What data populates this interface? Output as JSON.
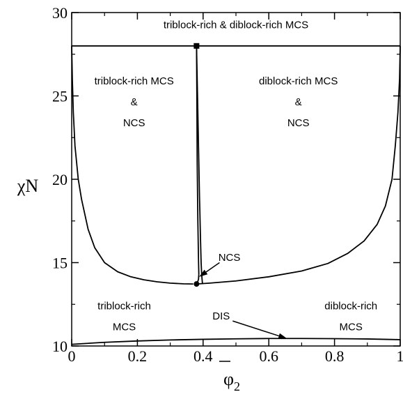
{
  "chart_data": {
    "type": "line",
    "xlim": [
      0,
      1
    ],
    "ylim": [
      10,
      30
    ],
    "xlabel_main": "φ",
    "xlabel_sub": "2",
    "ylabel": "χN",
    "x_ticks": [
      "0",
      "0.2",
      "0.4",
      "0.6",
      "0.8",
      "1"
    ],
    "y_ticks": [
      "10",
      "15",
      "20",
      "25",
      "30"
    ],
    "grid": false,
    "series": [
      {
        "role": "binodal-left",
        "x": [
          0.0,
          0.002,
          0.005,
          0.01,
          0.02,
          0.03,
          0.05,
          0.07,
          0.1,
          0.14,
          0.18,
          0.22,
          0.26,
          0.3,
          0.34,
          0.37
        ],
        "y": [
          28.0,
          26.0,
          24.0,
          22.0,
          20.0,
          18.8,
          17.0,
          15.9,
          15.0,
          14.45,
          14.15,
          13.97,
          13.85,
          13.77,
          13.73,
          13.72
        ]
      },
      {
        "role": "binodal-right",
        "x": [
          0.38,
          0.42,
          0.5,
          0.6,
          0.7,
          0.78,
          0.84,
          0.89,
          0.93,
          0.955,
          0.975,
          0.985,
          0.993,
          0.998,
          1.0
        ],
        "y": [
          13.72,
          13.77,
          13.9,
          14.15,
          14.5,
          14.95,
          15.55,
          16.3,
          17.3,
          18.4,
          20.0,
          22.0,
          24.0,
          26.0,
          28.0
        ]
      },
      {
        "role": "NCS-upper-left",
        "x": [
          0.38,
          0.381,
          0.382,
          0.384,
          0.386,
          0.387
        ],
        "y": [
          28.0,
          25.0,
          21.0,
          17.5,
          15.2,
          14.3
        ]
      },
      {
        "role": "NCS-upper-right",
        "x": [
          0.38,
          0.383,
          0.386,
          0.389,
          0.392,
          0.394,
          0.396,
          0.398
        ],
        "y": [
          28.0,
          25.0,
          22.0,
          19.0,
          16.5,
          15.0,
          14.2,
          13.75
        ]
      },
      {
        "role": "NCS-lower",
        "x": [
          0.387,
          0.386,
          0.383,
          0.38
        ],
        "y": [
          14.3,
          14.0,
          13.82,
          13.72
        ]
      },
      {
        "role": "MCS-boundary",
        "x": [
          0.0,
          1.0
        ],
        "y": [
          28.0,
          28.0
        ]
      },
      {
        "role": "DIS-boundary",
        "x": [
          0.0,
          0.1,
          0.2,
          0.3,
          0.4,
          0.5,
          0.6,
          0.7,
          0.8,
          0.9,
          1.0
        ],
        "y": [
          10.1,
          10.22,
          10.3,
          10.36,
          10.4,
          10.43,
          10.45,
          10.45,
          10.44,
          10.42,
          10.38
        ]
      }
    ],
    "markers": [
      {
        "shape": "square",
        "x": 0.38,
        "y": 28.0
      },
      {
        "shape": "circle",
        "x": 0.38,
        "y": 13.72
      }
    ],
    "arrows": [
      {
        "from": [
          0.45,
          15.0
        ],
        "to": [
          0.388,
          14.15
        ]
      },
      {
        "from": [
          0.49,
          11.5
        ],
        "to": [
          0.655,
          10.45
        ]
      }
    ],
    "annotations": [
      {
        "id": "top",
        "x": 0.5,
        "y": 29.05,
        "lines": [
          "triblock-rich & diblock-rich MCS"
        ]
      },
      {
        "id": "upper-left",
        "x": 0.19,
        "y": 25.7,
        "lines": [
          "triblock-rich MCS",
          "&",
          "NCS"
        ]
      },
      {
        "id": "upper-right",
        "x": 0.69,
        "y": 25.7,
        "lines": [
          "diblock-rich MCS",
          "&",
          "NCS"
        ]
      },
      {
        "id": "ncs",
        "x": 0.48,
        "y": 15.1,
        "lines": [
          "NCS"
        ]
      },
      {
        "id": "lower-left",
        "x": 0.16,
        "y": 12.2,
        "lines": [
          "triblock-rich",
          "MCS"
        ]
      },
      {
        "id": "lower-right",
        "x": 0.85,
        "y": 12.2,
        "lines": [
          "diblock-rich",
          "MCS"
        ]
      },
      {
        "id": "dis",
        "x": 0.455,
        "y": 11.58,
        "lines": [
          "DIS"
        ]
      }
    ]
  }
}
